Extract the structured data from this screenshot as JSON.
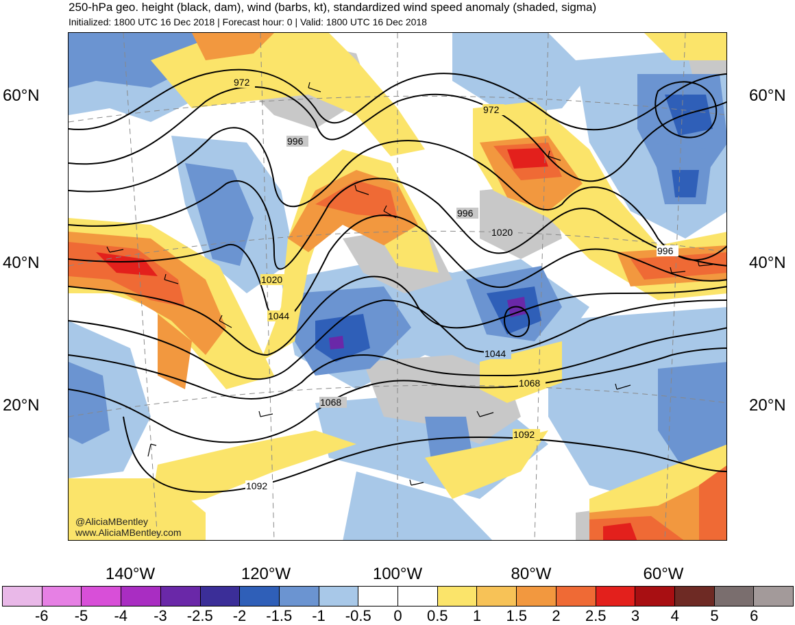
{
  "header": {
    "title": "250-hPa geo. height (black, dam), wind (barbs, kt), standardized wind speed anomaly (shaded, sigma)",
    "subtitle": "Initialized: 1800 UTC 16 Dec 2018 | Forecast hour: 0 | Valid: 1800 UTC 16 Dec 2018"
  },
  "axes": {
    "lat_left": [
      "60°N",
      "40°N",
      "20°N"
    ],
    "lat_right": [
      "60°N",
      "40°N",
      "20°N"
    ],
    "lon": [
      "140°W",
      "120°W",
      "100°W",
      "80°W",
      "60°W"
    ]
  },
  "contour_labels": [
    "972",
    "996",
    "972",
    "996",
    "1020",
    "996",
    "1020",
    "1044",
    "1044",
    "1068",
    "1068",
    "1092",
    "1092"
  ],
  "credits": [
    "@AliciaMBentley",
    "www.AliciaMBentley.com"
  ],
  "colorbar": {
    "labels": [
      "-6",
      "-5",
      "-4",
      "-3",
      "-2.5",
      "-2",
      "-1.5",
      "-1",
      "-0.5",
      "0",
      "0.5",
      "1",
      "1.5",
      "2",
      "2.5",
      "3",
      "4",
      "5",
      "6"
    ],
    "colors": [
      "#e9b8e8",
      "#e680e4",
      "#d84fd8",
      "#a92dc2",
      "#6a28a8",
      "#3b2e98",
      "#2f5fb8",
      "#6b94d1",
      "#a8c8e8",
      "#ffffff",
      "#ffffff",
      "#fbe46a",
      "#f7c257",
      "#f2983f",
      "#ef6a35",
      "#e3201c",
      "#a80f12",
      "#6e2a24",
      "#7a6e6e",
      "#a39a9a"
    ]
  },
  "colors": {
    "land_gray": "#c8c8c8",
    "contour": "#000000"
  }
}
